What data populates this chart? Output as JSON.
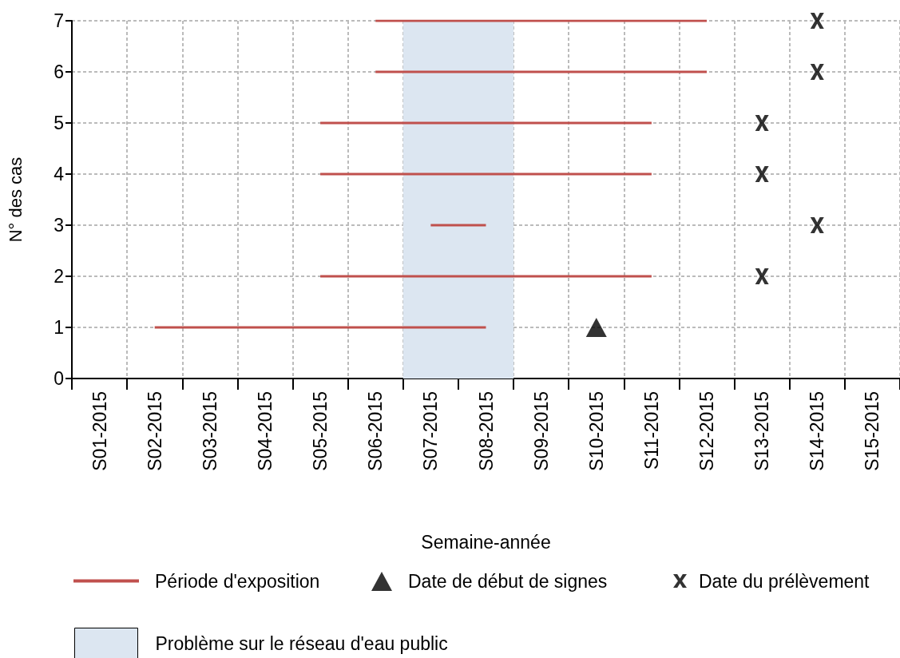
{
  "chart_data": {
    "type": "line",
    "xlabel": "Semaine-année",
    "ylabel": "N° des cas",
    "categories": [
      "S01-2015",
      "S02-2015",
      "S03-2015",
      "S04-2015",
      "S05-2015",
      "S06-2015",
      "S07-2015",
      "S08-2015",
      "S09-2015",
      "S10-2015",
      "S11-2015",
      "S12-2015",
      "S13-2015",
      "S14-2015",
      "S15-2015"
    ],
    "ylim": [
      0,
      7
    ],
    "yticks": [
      0,
      1,
      2,
      3,
      4,
      5,
      6,
      7
    ],
    "grid": true,
    "legend": "bottom",
    "series": [
      {
        "name": "Période d'exposition",
        "color": "#c0504d",
        "marker": "none",
        "line_style": "solid",
        "x": [
          "S02-2015",
          "S08-2015"
        ],
        "values": [
          1,
          1
        ]
      },
      {
        "color": "#c0504d",
        "marker": "none",
        "line_style": "solid",
        "x": [
          "S05-2015",
          "S11-2015"
        ],
        "values": [
          2,
          2
        ]
      },
      {
        "color": "#c0504d",
        "marker": "none",
        "line_style": "solid",
        "x": [
          "S07-2015",
          "S08-2015"
        ],
        "values": [
          3,
          3
        ]
      },
      {
        "color": "#c0504d",
        "marker": "none",
        "line_style": "solid",
        "x": [
          "S05-2015",
          "S11-2015"
        ],
        "values": [
          4,
          4
        ]
      },
      {
        "color": "#c0504d",
        "marker": "none",
        "line_style": "solid",
        "x": [
          "S05-2015",
          "S11-2015"
        ],
        "values": [
          5,
          5
        ]
      },
      {
        "color": "#c0504d",
        "marker": "none",
        "line_style": "solid",
        "x": [
          "S06-2015",
          "S12-2015"
        ],
        "values": [
          6,
          6
        ]
      },
      {
        "color": "#c0504d",
        "marker": "none",
        "line_style": "solid",
        "x": [
          "S06-2015",
          "S12-2015"
        ],
        "values": [
          7,
          7
        ]
      },
      {
        "name": "Date de début de signes",
        "type": "scatter",
        "color": "#000000",
        "marker": "triangle",
        "x": [
          "S10-2015"
        ],
        "values": [
          1
        ]
      },
      {
        "name": "Date du prélèvement",
        "type": "scatter",
        "color": "#000000",
        "marker": "cross",
        "x": [
          "S13-2015",
          "S14-2015",
          "S13-2015",
          "S13-2015",
          "S14-2015",
          "S14-2015"
        ],
        "values": [
          2,
          3,
          4,
          5,
          6,
          7
        ]
      }
    ],
    "bands": [
      {
        "axis": "x",
        "from": "S07-2015",
        "to": "S08-2015",
        "label": "Problème sur le réseau d'eau public",
        "color": "#dce6f1"
      }
    ]
  }
}
